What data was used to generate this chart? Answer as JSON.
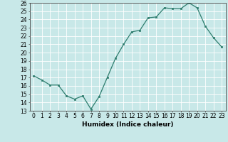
{
  "x": [
    0,
    1,
    2,
    3,
    4,
    5,
    6,
    7,
    8,
    9,
    10,
    11,
    12,
    13,
    14,
    15,
    16,
    17,
    18,
    19,
    20,
    21,
    22,
    23
  ],
  "y": [
    17.2,
    16.7,
    16.1,
    16.1,
    14.8,
    14.4,
    14.8,
    13.2,
    14.7,
    17.0,
    19.3,
    21.0,
    22.5,
    22.7,
    24.2,
    24.3,
    25.4,
    25.3,
    25.3,
    26.0,
    25.4,
    23.2,
    21.8,
    20.7
  ],
  "xlabel": "Humidex (Indice chaleur)",
  "ylabel": "",
  "ylim": [
    13,
    26
  ],
  "xlim": [
    -0.5,
    23.5
  ],
  "yticks": [
    13,
    14,
    15,
    16,
    17,
    18,
    19,
    20,
    21,
    22,
    23,
    24,
    25,
    26
  ],
  "xticks": [
    0,
    1,
    2,
    3,
    4,
    5,
    6,
    7,
    8,
    9,
    10,
    11,
    12,
    13,
    14,
    15,
    16,
    17,
    18,
    19,
    20,
    21,
    22,
    23
  ],
  "line_color": "#2e7d6e",
  "marker_color": "#2e7d6e",
  "bg_color": "#c8e8e8",
  "grid_color": "#ffffff",
  "label_fontsize": 6.5,
  "tick_fontsize": 5.5,
  "linewidth": 0.9,
  "markersize": 2.0
}
